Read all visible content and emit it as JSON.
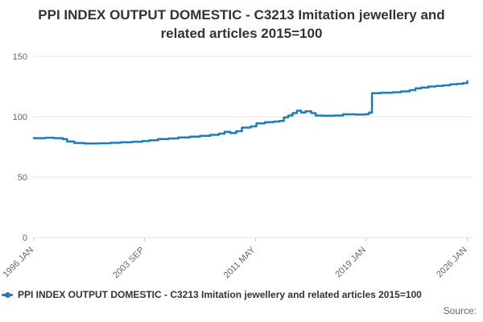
{
  "header": {
    "title": "PPI INDEX OUTPUT DOMESTIC - C3213 Imitation jewellery and related articles 2015=100"
  },
  "legend": {
    "label": "PPI INDEX OUTPUT DOMESTIC - C3213 Imitation jewellery and related articles 2015=100"
  },
  "footer": {
    "source_label": "Source:"
  },
  "chart_data": {
    "type": "line",
    "step": true,
    "title": "PPI INDEX OUTPUT DOMESTIC - C3213 Imitation jewellery and related articles 2015=100",
    "xlabel": "",
    "ylabel": "",
    "xlim": [
      1996,
      2026.3
    ],
    "ylim": [
      0,
      150
    ],
    "yticks": [
      0,
      50,
      100,
      150
    ],
    "xticks": [
      {
        "x": 1996.0,
        "label": "1996 JAN"
      },
      {
        "x": 2003.667,
        "label": "2003 SEP"
      },
      {
        "x": 2011.333,
        "label": "2011 MAY"
      },
      {
        "x": 2019.0,
        "label": "2019 JAN"
      },
      {
        "x": 2026.0,
        "label": "2026 JAN"
      }
    ],
    "grid": "horizontal",
    "legend_position": "bottom-left",
    "colors": {
      "grid": "#e6e6e6",
      "tick_label": "#666666",
      "tick_mark": "#cccccc"
    },
    "series": [
      {
        "name": "PPI INDEX OUTPUT DOMESTIC - C3213 Imitation jewellery and related articles 2015=100",
        "color": "#1d7dbc",
        "points": [
          [
            1996.0,
            82.3
          ],
          [
            1996.8,
            82.6
          ],
          [
            1997.4,
            82.3
          ],
          [
            1998.0,
            81.5
          ],
          [
            1998.3,
            79.5
          ],
          [
            1998.8,
            78.3
          ],
          [
            1999.5,
            77.8
          ],
          [
            2000.5,
            78.0
          ],
          [
            2001.3,
            78.4
          ],
          [
            2002.0,
            78.8
          ],
          [
            2002.8,
            79.3
          ],
          [
            2003.5,
            79.8
          ],
          [
            2004.0,
            80.5
          ],
          [
            2004.6,
            81.5
          ],
          [
            2005.3,
            82.0
          ],
          [
            2006.0,
            82.8
          ],
          [
            2006.8,
            83.5
          ],
          [
            2007.5,
            84.2
          ],
          [
            2008.2,
            85.0
          ],
          [
            2008.8,
            86.0
          ],
          [
            2009.2,
            87.5
          ],
          [
            2009.6,
            86.5
          ],
          [
            2010.0,
            88.0
          ],
          [
            2010.4,
            91.0
          ],
          [
            2011.0,
            92.0
          ],
          [
            2011.4,
            94.5
          ],
          [
            2012.0,
            95.5
          ],
          [
            2012.6,
            96.0
          ],
          [
            2013.0,
            96.5
          ],
          [
            2013.3,
            99.5
          ],
          [
            2013.6,
            101.0
          ],
          [
            2013.9,
            103.0
          ],
          [
            2014.2,
            105.0
          ],
          [
            2014.5,
            103.5
          ],
          [
            2014.8,
            104.5
          ],
          [
            2015.2,
            103.0
          ],
          [
            2015.5,
            101.0
          ],
          [
            2016.0,
            100.8
          ],
          [
            2016.8,
            101.0
          ],
          [
            2017.4,
            102.0
          ],
          [
            2018.2,
            101.8
          ],
          [
            2019.0,
            102.2
          ],
          [
            2019.2,
            103.5
          ],
          [
            2019.4,
            119.5
          ],
          [
            2020.0,
            119.8
          ],
          [
            2020.8,
            120.3
          ],
          [
            2021.4,
            121.0
          ],
          [
            2022.0,
            122.0
          ],
          [
            2022.4,
            123.5
          ],
          [
            2022.8,
            124.2
          ],
          [
            2023.3,
            125.0
          ],
          [
            2023.8,
            125.5
          ],
          [
            2024.3,
            126.0
          ],
          [
            2024.8,
            126.8
          ],
          [
            2025.3,
            127.3
          ],
          [
            2025.7,
            127.8
          ],
          [
            2026.0,
            129.5
          ]
        ]
      }
    ]
  }
}
